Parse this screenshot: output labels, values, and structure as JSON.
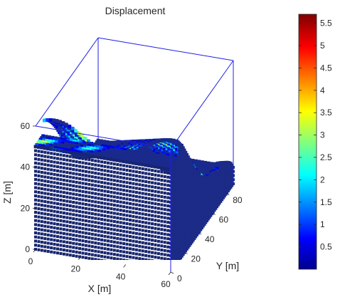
{
  "chart_data": {
    "type": "3d-scatter",
    "title": "Displacement",
    "xlabel": "X [m]",
    "ylabel": "Y [m]",
    "zlabel": "Z [m]",
    "xlim": [
      0,
      60
    ],
    "ylim": [
      0,
      90
    ],
    "zlim": [
      0,
      60
    ],
    "xticks": [
      "0",
      "20",
      "40",
      "60"
    ],
    "yticks": [
      "0",
      "20",
      "40",
      "60",
      "80"
    ],
    "zticks": [
      "0",
      "20",
      "40",
      "60"
    ],
    "colorbar": {
      "colormap": "jet",
      "range": [
        0,
        5.7
      ],
      "ticks": [
        "0.5",
        "1",
        "1.5",
        "2",
        "2.5",
        "3",
        "3.5",
        "4",
        "4.5",
        "5",
        "5.5"
      ]
    },
    "colors": {
      "box": "#1f1fe6",
      "axis_text": "#262626",
      "base_point": "#1a2a8c"
    }
  }
}
